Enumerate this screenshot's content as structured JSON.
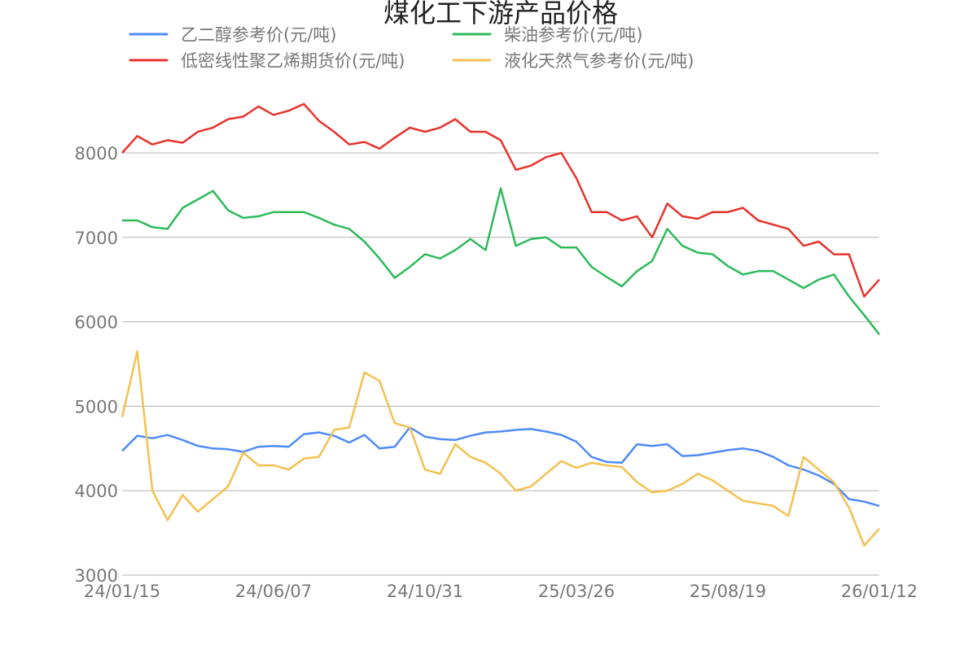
{
  "chart_data": {
    "type": "line",
    "title": "煤化工下游产品价格",
    "xlabel": "",
    "ylabel": "",
    "ylim": [
      3000,
      8000
    ],
    "y_ticks": [
      "3000",
      "4000",
      "5000",
      "6000",
      "7000",
      "8000"
    ],
    "x_tick_labels": [
      "24/01/15",
      "24/06/07",
      "24/10/31",
      "25/03/26",
      "25/08/19",
      "26/01/12"
    ],
    "grid": "horizontal",
    "legend_position": "top",
    "x": [
      "24/01/15",
      "24/01/29",
      "24/02/13",
      "24/02/27",
      "24/03/13",
      "24/03/27",
      "24/04/10",
      "24/04/25",
      "24/05/09",
      "24/05/23",
      "24/06/07",
      "24/06/21",
      "24/07/06",
      "24/07/20",
      "24/08/03",
      "24/08/18",
      "24/09/01",
      "24/09/16",
      "24/10/01",
      "24/10/16",
      "24/10/31",
      "24/11/14",
      "24/11/29",
      "24/12/13",
      "24/12/28",
      "25/01/11",
      "25/01/26",
      "25/02/09",
      "25/02/24",
      "25/03/11",
      "25/03/26",
      "25/04/09",
      "25/04/24",
      "25/05/08",
      "25/05/23",
      "25/06/07",
      "25/06/21",
      "25/07/06",
      "25/07/20",
      "25/08/04",
      "25/08/19",
      "25/09/02",
      "25/09/17",
      "25/10/01",
      "25/10/16",
      "25/10/31",
      "25/11/14",
      "25/11/29",
      "25/12/13",
      "25/12/28",
      "26/01/12"
    ],
    "series": [
      {
        "name": "乙二醇参考价(元/吨)",
        "color": "#4e8bf5",
        "values": [
          4470,
          4650,
          4620,
          4660,
          4600,
          4530,
          4500,
          4490,
          4460,
          4520,
          4530,
          4520,
          4670,
          4690,
          4650,
          4570,
          4660,
          4500,
          4520,
          4750,
          4640,
          4610,
          4600,
          4650,
          4690,
          4700,
          4720,
          4730,
          4700,
          4660,
          4580,
          4400,
          4340,
          4330,
          4550,
          4530,
          4550,
          4410,
          4420,
          4450,
          4480,
          4500,
          4470,
          4400,
          4300,
          4250,
          4180,
          4080,
          3900,
          3870,
          3820
        ]
      },
      {
        "name": "柴油参考价(元/吨)",
        "color": "#2dba5a",
        "values": [
          7200,
          7200,
          7120,
          7100,
          7350,
          7450,
          7550,
          7320,
          7230,
          7250,
          7300,
          7300,
          7300,
          7230,
          7150,
          7100,
          6950,
          6750,
          6520,
          6650,
          6800,
          6750,
          6850,
          6980,
          6850,
          7580,
          6900,
          6980,
          7000,
          6880,
          6880,
          6650,
          6530,
          6420,
          6600,
          6720,
          7100,
          6900,
          6820,
          6800,
          6660,
          6560,
          6600,
          6600,
          6500,
          6400,
          6500,
          6560,
          6300,
          6080,
          5850
        ]
      },
      {
        "name": "低密线性聚乙烯期货价(元/吨)",
        "color": "#e8322d",
        "values": [
          8000,
          8200,
          8100,
          8150,
          8120,
          8250,
          8300,
          8400,
          8430,
          8550,
          8450,
          8500,
          8580,
          8380,
          8250,
          8100,
          8130,
          8050,
          8180,
          8300,
          8250,
          8300,
          8400,
          8250,
          8250,
          8150,
          7800,
          7850,
          7950,
          8000,
          7700,
          7300,
          7300,
          7200,
          7250,
          7000,
          7400,
          7250,
          7220,
          7300,
          7300,
          7350,
          7200,
          7150,
          7100,
          6900,
          6950,
          6800,
          6800,
          6300,
          6500
        ]
      },
      {
        "name": "液化天然气参考价(元/吨)",
        "color": "#f4c050",
        "values": [
          4870,
          5650,
          4000,
          3650,
          3950,
          3750,
          3900,
          4050,
          4450,
          4300,
          4300,
          4250,
          4380,
          4400,
          4720,
          4750,
          5400,
          5300,
          4800,
          4750,
          4250,
          4200,
          4550,
          4400,
          4330,
          4200,
          4000,
          4050,
          4200,
          4350,
          4270,
          4330,
          4300,
          4280,
          4100,
          3980,
          4000,
          4080,
          4200,
          4120,
          4000,
          3880,
          3850,
          3820,
          3700,
          4400,
          4250,
          4100,
          3800,
          3350,
          3550
        ]
      }
    ]
  }
}
